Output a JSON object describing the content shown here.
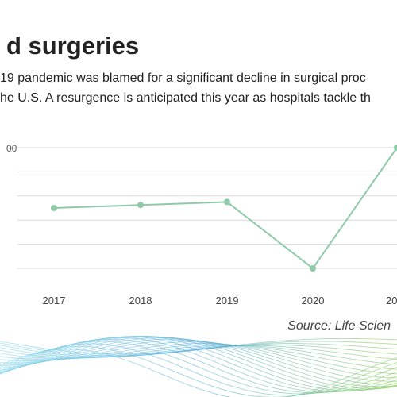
{
  "chart_data": {
    "type": "line",
    "title": "d surgeries",
    "subtitle_lines": [
      "19 pandemic was blamed for a significant decline in surgical proc",
      "he U.S. A resurgence is anticipated this year as hospitals tackle th"
    ],
    "y_tick_labels": [
      "00",
      "",
      "",
      "",
      "",
      ""
    ],
    "categories": [
      "2017",
      "2018",
      "2019",
      "2020",
      "20"
    ],
    "series": [
      {
        "values": [
          3.0,
          3.15,
          3.3,
          0.0,
          6.0
        ]
      }
    ],
    "ylim": [
      0,
      6
    ],
    "grid": true,
    "source": "Source: Life Scien",
    "line_color": "#8fcaa8",
    "grid_color": "#d9d9d9"
  }
}
